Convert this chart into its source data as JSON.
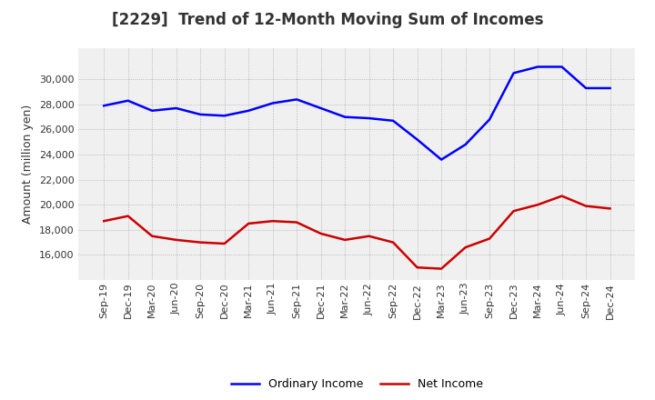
{
  "title": "[2229]  Trend of 12-Month Moving Sum of Incomes",
  "ylabel": "Amount (million yen)",
  "background_color": "#ffffff",
  "plot_bg_color": "#ffffff",
  "grid_color": "#999999",
  "x_labels": [
    "Sep-19",
    "Dec-19",
    "Mar-20",
    "Jun-20",
    "Sep-20",
    "Dec-20",
    "Mar-21",
    "Jun-21",
    "Sep-21",
    "Dec-21",
    "Mar-22",
    "Jun-22",
    "Sep-22",
    "Dec-22",
    "Mar-23",
    "Jun-23",
    "Sep-23",
    "Dec-23",
    "Mar-24",
    "Jun-24",
    "Sep-24",
    "Dec-24"
  ],
  "ordinary_income": [
    27900,
    28300,
    27500,
    27700,
    27200,
    27100,
    27500,
    28100,
    28400,
    27700,
    27000,
    26900,
    26700,
    25200,
    23600,
    24800,
    26800,
    30500,
    31000,
    31000,
    29300,
    29300
  ],
  "net_income": [
    18700,
    19100,
    17500,
    17200,
    17000,
    16900,
    18500,
    18700,
    18600,
    17700,
    17200,
    17500,
    17000,
    15000,
    14900,
    16600,
    17300,
    19500,
    20000,
    20700,
    19900,
    19700
  ],
  "ordinary_color": "#0000ff",
  "net_color": "#cc0000",
  "ylim_min": 14000,
  "ylim_max": 32500,
  "yticks": [
    16000,
    18000,
    20000,
    22000,
    24000,
    26000,
    28000,
    30000
  ],
  "legend_labels": [
    "Ordinary Income",
    "Net Income"
  ],
  "title_fontsize": 12,
  "tick_fontsize": 8,
  "ylabel_fontsize": 9
}
